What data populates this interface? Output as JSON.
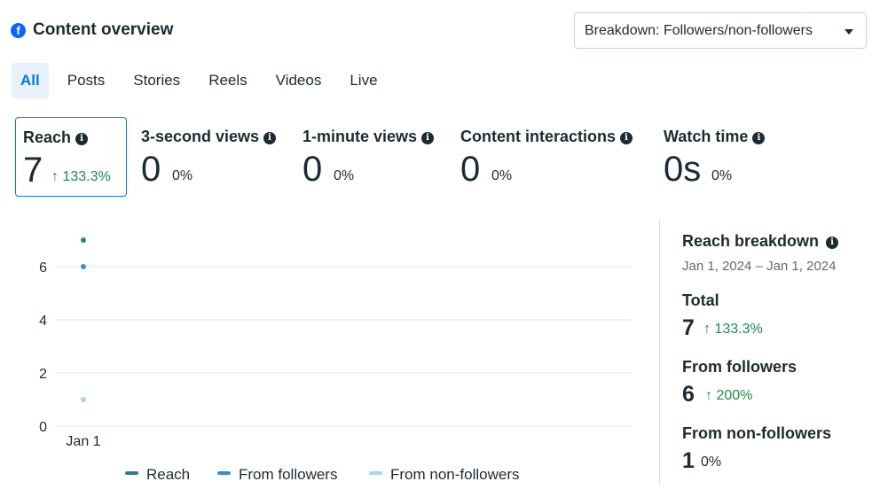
{
  "header": {
    "title": "Content overview",
    "breakdown_label": "Breakdown: Followers/non-followers"
  },
  "tabs": [
    {
      "label": "All",
      "active": true
    },
    {
      "label": "Posts",
      "active": false
    },
    {
      "label": "Stories",
      "active": false
    },
    {
      "label": "Reels",
      "active": false
    },
    {
      "label": "Videos",
      "active": false
    },
    {
      "label": "Live",
      "active": false
    }
  ],
  "metrics": [
    {
      "label": "Reach",
      "value": "7",
      "change": "↑ 133.3%",
      "positive": true,
      "selected": true
    },
    {
      "label": "3-second views",
      "value": "0",
      "change": "0%",
      "positive": false,
      "selected": false
    },
    {
      "label": "1-minute views",
      "value": "0",
      "change": "0%",
      "positive": false,
      "selected": false
    },
    {
      "label": "Content interactions",
      "value": "0",
      "change": "0%",
      "positive": false,
      "selected": false
    },
    {
      "label": "Watch time",
      "value": "0s",
      "change": "0%",
      "positive": false,
      "selected": false
    }
  ],
  "chart_data": {
    "type": "scatter",
    "categories": [
      "Jan 1"
    ],
    "yticks": [
      "0",
      "2",
      "4",
      "6"
    ],
    "ylim": [
      0,
      7.8
    ],
    "grid": true,
    "legend_position": "bottom",
    "series": [
      {
        "name": "Reach",
        "values": [
          7
        ],
        "color": "#2e7d8f"
      },
      {
        "name": "From followers",
        "values": [
          6
        ],
        "color": "#3c8ec4"
      },
      {
        "name": "From non-followers",
        "values": [
          1
        ],
        "color": "#a6d8ef"
      }
    ]
  },
  "breakdown": {
    "title": "Reach breakdown",
    "date_range": "Jan 1, 2024 – Jan 1, 2024",
    "rows": [
      {
        "label": "Total",
        "value": "7",
        "change": "↑ 133.3%",
        "positive": true
      },
      {
        "label": "From followers",
        "value": "6",
        "change": "↑ 200%",
        "positive": true
      },
      {
        "label": "From non-followers",
        "value": "1",
        "change": "0%",
        "positive": false
      }
    ]
  },
  "icons": {
    "brand": "facebook-icon",
    "info": "info-icon",
    "dropdown": "caret-down-icon"
  },
  "colors": {
    "accent": "#0a78d7",
    "positive": "#1e8a4a",
    "brand": "#0866ff"
  }
}
